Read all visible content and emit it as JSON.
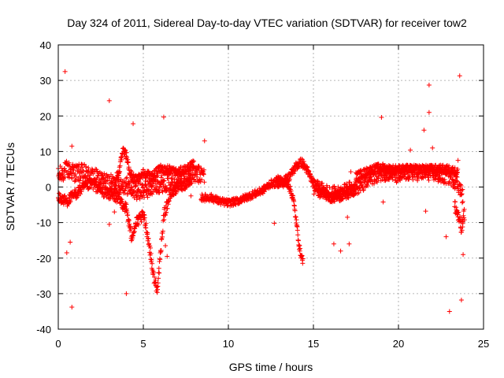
{
  "chart_data": {
    "type": "scatter",
    "title": "Day 324 of 2011, Sidereal Day-to-day VTEC variation (SDTVAR) for receiver tow2",
    "xlabel": "GPS time / hours",
    "ylabel": "SDTVAR / TECUs",
    "xlim": [
      0,
      25
    ],
    "ylim": [
      -40,
      40
    ],
    "xticks": [
      0,
      5,
      10,
      15,
      20,
      25
    ],
    "yticks": [
      -40,
      -30,
      -20,
      -10,
      0,
      10,
      20,
      30,
      40
    ],
    "grid": true,
    "marker": "+",
    "color": "#ff0000",
    "series": [
      {
        "name": "SDTVAR",
        "outliers": [
          [
            0.4,
            32.5
          ],
          [
            0.8,
            11.5
          ],
          [
            0.5,
            -18.5
          ],
          [
            0.8,
            -33.8
          ],
          [
            0.7,
            -15.5
          ],
          [
            3.0,
            24.3
          ],
          [
            3.0,
            -10.5
          ],
          [
            3.3,
            -7.0
          ],
          [
            4.0,
            -30.0
          ],
          [
            4.4,
            17.8
          ],
          [
            6.2,
            19.7
          ],
          [
            6.3,
            -16.5
          ],
          [
            6.4,
            -19.5
          ],
          [
            8.6,
            13.0
          ],
          [
            7.8,
            -2.5
          ],
          [
            12.7,
            -10.2
          ],
          [
            16.2,
            -16.0
          ],
          [
            16.6,
            -18.0
          ],
          [
            17.1,
            -16.0
          ],
          [
            17.0,
            -8.5
          ],
          [
            17.2,
            4.3
          ],
          [
            19.0,
            19.6
          ],
          [
            19.1,
            -4.2
          ],
          [
            20.7,
            10.4
          ],
          [
            21.5,
            16.0
          ],
          [
            21.8,
            28.7
          ],
          [
            21.8,
            21.0
          ],
          [
            21.6,
            -6.8
          ],
          [
            22.8,
            -14.0
          ],
          [
            23.0,
            -35.0
          ],
          [
            23.6,
            31.3
          ],
          [
            23.7,
            -31.8
          ],
          [
            23.8,
            -19.0
          ],
          [
            23.5,
            7.5
          ],
          [
            22.0,
            11.0
          ]
        ],
        "bands": [
          {
            "name": "track-main",
            "points": [
              [
                0.0,
                3
              ],
              [
                0.5,
                5
              ],
              [
                1,
                4
              ],
              [
                1.5,
                4
              ],
              [
                2,
                3
              ],
              [
                2.5,
                2
              ],
              [
                3,
                1
              ],
              [
                3.5,
                1
              ],
              [
                4,
                0.5
              ],
              [
                4.5,
                -1
              ],
              [
                5,
                -1
              ],
              [
                5.5,
                0
              ],
              [
                6,
                1
              ],
              [
                7,
                2
              ],
              [
                7.5,
                3
              ],
              [
                8,
                3.5
              ],
              [
                8.6,
                3.5
              ]
            ],
            "spread": 2.5
          },
          {
            "name": "track-low",
            "points": [
              [
                0.0,
                -3
              ],
              [
                0.5,
                -4
              ],
              [
                1,
                -2
              ],
              [
                1.5,
                0
              ],
              [
                2,
                1
              ],
              [
                2.5,
                -1
              ],
              [
                3,
                -2
              ],
              [
                3.5,
                -3
              ],
              [
                4,
                -6
              ],
              [
                4.3,
                -14
              ],
              [
                4.6,
                -10
              ],
              [
                5,
                -8
              ],
              [
                5.2,
                -12
              ],
              [
                5.4,
                -18
              ],
              [
                5.6,
                -25
              ],
              [
                5.8,
                -29
              ],
              [
                6,
                -20
              ],
              [
                6.2,
                -8
              ],
              [
                6.6,
                -2
              ],
              [
                7,
                0
              ],
              [
                7.5,
                1
              ],
              [
                7.8,
                2
              ]
            ],
            "spread": 1.5
          },
          {
            "name": "track-peak",
            "points": [
              [
                3.3,
                1
              ],
              [
                3.6,
                5
              ],
              [
                3.8,
                10
              ],
              [
                4.0,
                9
              ],
              [
                4.2,
                4
              ],
              [
                4.5,
                2
              ],
              [
                5,
                4
              ],
              [
                5.5,
                3
              ],
              [
                6,
                5
              ],
              [
                6.5,
                5
              ],
              [
                7,
                4
              ],
              [
                7.5,
                5
              ],
              [
                8,
                6.5
              ]
            ],
            "spread": 1.2
          },
          {
            "name": "track-mid",
            "points": [
              [
                8.4,
                -3
              ],
              [
                9,
                -3
              ],
              [
                9.5,
                -4
              ],
              [
                10,
                -4.5
              ],
              [
                10.5,
                -4
              ],
              [
                11,
                -3
              ],
              [
                11.5,
                -2
              ],
              [
                12,
                -1
              ],
              [
                12.5,
                1
              ],
              [
                13,
                1
              ],
              [
                13.5,
                1
              ],
              [
                13.8,
                -3
              ],
              [
                14,
                -10
              ],
              [
                14.2,
                -18
              ],
              [
                14.4,
                -21
              ]
            ],
            "spread": 1.0
          },
          {
            "name": "track-mid-high",
            "points": [
              [
                12.8,
                2
              ],
              [
                13.2,
                1.5
              ],
              [
                13.6,
                3
              ],
              [
                14,
                6
              ],
              [
                14.3,
                7
              ],
              [
                14.6,
                5
              ],
              [
                15,
                1
              ],
              [
                15.5,
                -1
              ],
              [
                16,
                -3
              ],
              [
                16.5,
                -2
              ],
              [
                17,
                -1
              ],
              [
                17.5,
                0
              ]
            ],
            "spread": 1.2
          },
          {
            "name": "track-late",
            "points": [
              [
                15,
                0
              ],
              [
                15.5,
                -1
              ],
              [
                16,
                -2
              ],
              [
                16.5,
                -2
              ],
              [
                17,
                -1
              ],
              [
                17.5,
                0
              ],
              [
                18,
                1
              ],
              [
                18.5,
                3
              ],
              [
                19,
                4
              ],
              [
                19.5,
                4
              ],
              [
                20,
                3
              ],
              [
                20.5,
                4
              ],
              [
                21,
                4
              ],
              [
                21.5,
                4
              ],
              [
                22,
                4
              ],
              [
                22.5,
                3
              ],
              [
                23,
                3
              ],
              [
                23.5,
                1
              ],
              [
                23.8,
                -3
              ]
            ],
            "spread": 2.2
          },
          {
            "name": "track-late-high",
            "points": [
              [
                17.5,
                3
              ],
              [
                18,
                4
              ],
              [
                18.5,
                5
              ],
              [
                19,
                5.5
              ],
              [
                19.5,
                5
              ],
              [
                20,
                5
              ],
              [
                20.5,
                5
              ],
              [
                21,
                5
              ],
              [
                21.5,
                5
              ],
              [
                22,
                5
              ],
              [
                22.5,
                5
              ],
              [
                23,
                5
              ],
              [
                23.5,
                4
              ]
            ],
            "spread": 1.2
          },
          {
            "name": "track-tail",
            "points": [
              [
                23.3,
                -5
              ],
              [
                23.5,
                -8
              ],
              [
                23.7,
                -12
              ],
              [
                23.9,
                -7
              ]
            ],
            "spread": 2.0
          }
        ]
      }
    ]
  }
}
